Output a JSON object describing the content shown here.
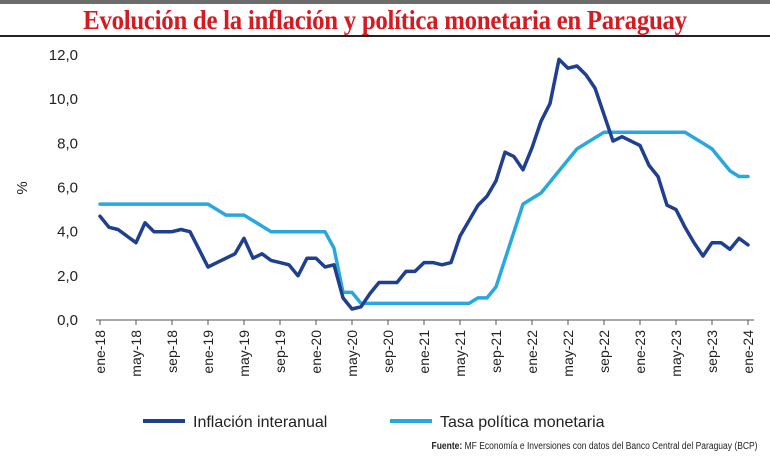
{
  "title": "Evolución de la inflación y política monetaria en Paraguay",
  "source_label": "Fuente:",
  "source_text": "MF Economía e Inversiones con datos del Banco Central del Paraguay (BCP)",
  "chart_data": {
    "type": "line",
    "title": "Evolución de la inflación y política monetaria en Paraguay",
    "xlabel": "",
    "ylabel": "%",
    "ylim": [
      0,
      12
    ],
    "yticks": [
      "0,0",
      "2,0",
      "4,0",
      "6,0",
      "8,0",
      "10,0",
      "12,0"
    ],
    "ytick_values": [
      0,
      2,
      4,
      6,
      8,
      10,
      12
    ],
    "x_tick_labels": [
      "ene-18",
      "may-18",
      "sep-18",
      "ene-19",
      "may-19",
      "sep-19",
      "ene-20",
      "may-20",
      "sep-20",
      "ene-21",
      "may-21",
      "sep-21",
      "ene-22",
      "may-22",
      "sep-22",
      "ene-23",
      "may-23",
      "sep-23",
      "ene-24"
    ],
    "x_start": "ene-18",
    "x_frequency": "monthly",
    "grid": false,
    "legend_position": "bottom",
    "series": [
      {
        "name": "Inflación interanual",
        "color": "#1f3f8f",
        "values": [
          4.7,
          4.2,
          4.1,
          3.8,
          3.5,
          4.4,
          4.0,
          4.0,
          4.0,
          4.1,
          4.0,
          3.2,
          2.4,
          2.6,
          2.8,
          3.0,
          3.7,
          2.8,
          3.0,
          2.7,
          2.6,
          2.5,
          2.0,
          2.8,
          2.8,
          2.4,
          2.5,
          1.0,
          0.5,
          0.6,
          1.2,
          1.7,
          1.7,
          1.7,
          2.2,
          2.2,
          2.6,
          2.6,
          2.5,
          2.6,
          3.8,
          4.5,
          5.2,
          5.6,
          6.3,
          7.6,
          7.4,
          6.8,
          7.8,
          9.0,
          9.8,
          11.8,
          11.4,
          11.5,
          11.1,
          10.5,
          9.3,
          8.1,
          8.3,
          8.1,
          7.9,
          7.0,
          6.5,
          5.2,
          5.0,
          4.2,
          3.5,
          2.9,
          3.5,
          3.5,
          3.2,
          3.7,
          3.4
        ]
      },
      {
        "name": "Tasa política monetaria",
        "color": "#29a8e0",
        "values": [
          5.25,
          5.25,
          5.25,
          5.25,
          5.25,
          5.25,
          5.25,
          5.25,
          5.25,
          5.25,
          5.25,
          5.25,
          5.25,
          5.0,
          4.75,
          4.75,
          4.75,
          4.5,
          4.25,
          4.0,
          4.0,
          4.0,
          4.0,
          4.0,
          4.0,
          4.0,
          3.25,
          1.25,
          1.25,
          0.75,
          0.75,
          0.75,
          0.75,
          0.75,
          0.75,
          0.75,
          0.75,
          0.75,
          0.75,
          0.75,
          0.75,
          0.75,
          1.0,
          1.0,
          1.5,
          2.75,
          4.0,
          5.25,
          5.5,
          5.75,
          6.25,
          6.75,
          7.25,
          7.75,
          8.0,
          8.25,
          8.5,
          8.5,
          8.5,
          8.5,
          8.5,
          8.5,
          8.5,
          8.5,
          8.5,
          8.5,
          8.25,
          8.0,
          7.75,
          7.25,
          6.75,
          6.5,
          6.5
        ]
      }
    ]
  }
}
